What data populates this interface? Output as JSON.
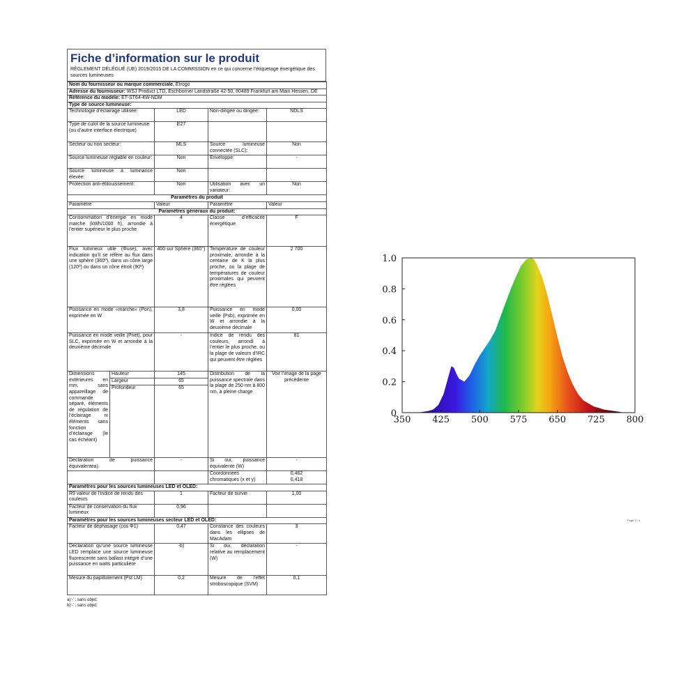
{
  "doc": {
    "title": "Fiche d’information sur le produit",
    "subtitle": "RÈGLEMENT DÉLÉGUÉ (UE) 2019/2015 DE LA COMMISSION en ce qui concerne l’étiquetage énergétique des sources lumineuses",
    "supplier_label": "Nom du fournisseur ou marque commerciale.",
    "supplier_value": "Etrogo",
    "address_label": "Adresse du fournisseur:",
    "address_value": "WSJ Product LTD, Eschborner Landstraße 42-50, 60489 Frankfurt am Main Hessen, DE",
    "model_label": "Référence du modèle:",
    "model_value": "ET-ST64-4W-NDM",
    "type_header": "Type de source lumineuse:",
    "type_rows": [
      {
        "p1": "Technologie d’éclairage utilisée:",
        "v1": "LED",
        "p2": "Non-dirigée ou dirigée:",
        "v2": "NDLS"
      },
      {
        "p1": "Type de culot de la source lumineuse (ou d’autre interface électrique)",
        "v1": "E27",
        "p2": "",
        "v2": ""
      },
      {
        "p1": "Secteur ou non secteur:",
        "v1": "MLS",
        "p2": "Source lumineuse connectée (SLC):",
        "v2": "Non"
      },
      {
        "p1": "Source lumineuse réglable en couleur:",
        "v1": "Non",
        "p2": "Enveloppe:",
        "v2": "-"
      },
      {
        "p1": "Source lumineuse à luminance élevée:",
        "v1": "Non",
        "p2": "",
        "v2": ""
      },
      {
        "p1": "Protection anti-éblouissement:",
        "v1": "Non",
        "p2": "Utilisation avec un variateur:",
        "v2": "Non"
      }
    ],
    "params_header": "Paramètres du produit",
    "col_param": "Paramètre",
    "col_value": "Valeur",
    "general_header": "Paramètres généraux du produit:",
    "general_rows": [
      {
        "p1": "Consommation d’énergie en mode marche (kWh/1000 h), arrondie à l’entier supérieur le plus proche",
        "v1": "4",
        "p2": "Classe d’efficacité énergétique",
        "v2": "F"
      },
      {
        "p1": "Flux lumineux utile (Φuse), avec indication qu’il se réfère au flux dans une sphère (360º), dans un cône large (120º) ou dans un cône étroit (90º)",
        "v1": "400 sur Sphère (360°)",
        "p2": "Température de couleur proximale, arrondie à la centaine de K la plus proche, ou la plage de températures de couleur proximales qui peuvent être réglées",
        "v2": "2 700"
      },
      {
        "p1": "Puissance en mode «marche» (Pon), exprimée en W",
        "v1": "3,8",
        "p2": "Puissance en mode veille (Psb), exprimée en W et arrondie à la deuxième décimale",
        "v2": "0,00"
      },
      {
        "p1": "Puissance en mode veille (Pnet), pour SLC, exprimée en W et arrondie à la deuxième décimale",
        "v1": "-",
        "p2": "Indice de rendu des couleurs, arrondi à l’entier le plus proche, ou la plage de valeurs d’IRC qui peuvent être réglées",
        "v2": "81"
      }
    ],
    "dim_label": "Dimensions extérieures en mm, sans appareillage de commande séparé, éléments de régulation de l’éclairage ni éléments sans fonction d’éclairage (le cas échéant)",
    "dims": [
      {
        "name": "Hauteur",
        "value": "145"
      },
      {
        "name": "Largeur",
        "value": "65"
      },
      {
        "name": "Profondeur",
        "value": "65"
      }
    ],
    "spd_label": "Distribution de la puissance spectrale dans la plage de 250 nm à 800 nm, à pleine charge",
    "spd_value": "Voir l’image de la page précédente",
    "equiv_label": "Déclaration de puissance équivalentea)",
    "equiv_value": "-",
    "equiv2_label": "Si oui, puissance équivalente (W)",
    "equiv2_value": "-",
    "chroma_label": "Coordonnées chromatiques (x et y)",
    "chroma_x": "0,462",
    "chroma_y": "0,418",
    "led_header": "Paramètres pour les sources lumineuses LED et OLED:",
    "led_rows": [
      {
        "p1": "R9 valeur de l’indice de rendu des couleurs",
        "v1": "1",
        "p2": "Facteur de survie",
        "v2": "1,00"
      },
      {
        "p1": "Facteur de conservation du flux lumineux",
        "v1": "0,96",
        "p2": "",
        "v2": ""
      }
    ],
    "mains_header": "Paramètres pour les sources lumineuses secteur LED et OLED:",
    "mains_rows": [
      {
        "p1": "Facteur de déphasage (cos Φ1)",
        "v1": "0,47",
        "p2": "Constance des couleurs dans les ellipses de MacAdam",
        "v2": "3"
      },
      {
        "p1": "Déclaration qu’une source lumineuse LED remplace une source lumineuse fluorescente sans ballast intégré d’une puissance en watts particulière",
        "v1": "-b)",
        "p2": "Si oui, déclaration relative au remplacement (W)",
        "v2": "-"
      },
      {
        "p1": "Mesure du papillotement (Pst LM)",
        "v1": "0,2",
        "p2": "Mesure de l’effet stroboscopique (SVM)",
        "v2": "0,1"
      }
    ],
    "note_a": "a)‘-’ : sans objet;",
    "note_b": "b)‘-’ : sans objet;"
  },
  "page_number": "Page 3 / 4",
  "chart_data": {
    "type": "area",
    "title": "",
    "xlabel": "",
    "ylabel": "",
    "xlim": [
      350,
      800
    ],
    "ylim": [
      0,
      1.0
    ],
    "x_ticks": [
      "350",
      "425",
      "500",
      "575",
      "650",
      "725",
      "800"
    ],
    "y_ticks": [
      "0",
      "0.2",
      "0.4",
      "0.6",
      "0.8",
      "1.0"
    ],
    "grid": false,
    "fill": "spectral rainbow gradient",
    "x": [
      380,
      400,
      410,
      420,
      430,
      440,
      445,
      450,
      455,
      460,
      470,
      480,
      490,
      500,
      510,
      520,
      530,
      540,
      550,
      560,
      570,
      580,
      590,
      600,
      605,
      610,
      620,
      630,
      640,
      650,
      660,
      670,
      680,
      690,
      700,
      710,
      720,
      730,
      740,
      750,
      760,
      770,
      780
    ],
    "values": [
      0.0,
      0.01,
      0.02,
      0.05,
      0.12,
      0.24,
      0.3,
      0.29,
      0.25,
      0.22,
      0.2,
      0.24,
      0.31,
      0.37,
      0.42,
      0.47,
      0.53,
      0.62,
      0.71,
      0.8,
      0.88,
      0.95,
      0.99,
      1.0,
      0.99,
      0.96,
      0.88,
      0.77,
      0.63,
      0.49,
      0.36,
      0.26,
      0.18,
      0.12,
      0.08,
      0.06,
      0.04,
      0.03,
      0.02,
      0.015,
      0.01,
      0.005,
      0.0
    ]
  }
}
